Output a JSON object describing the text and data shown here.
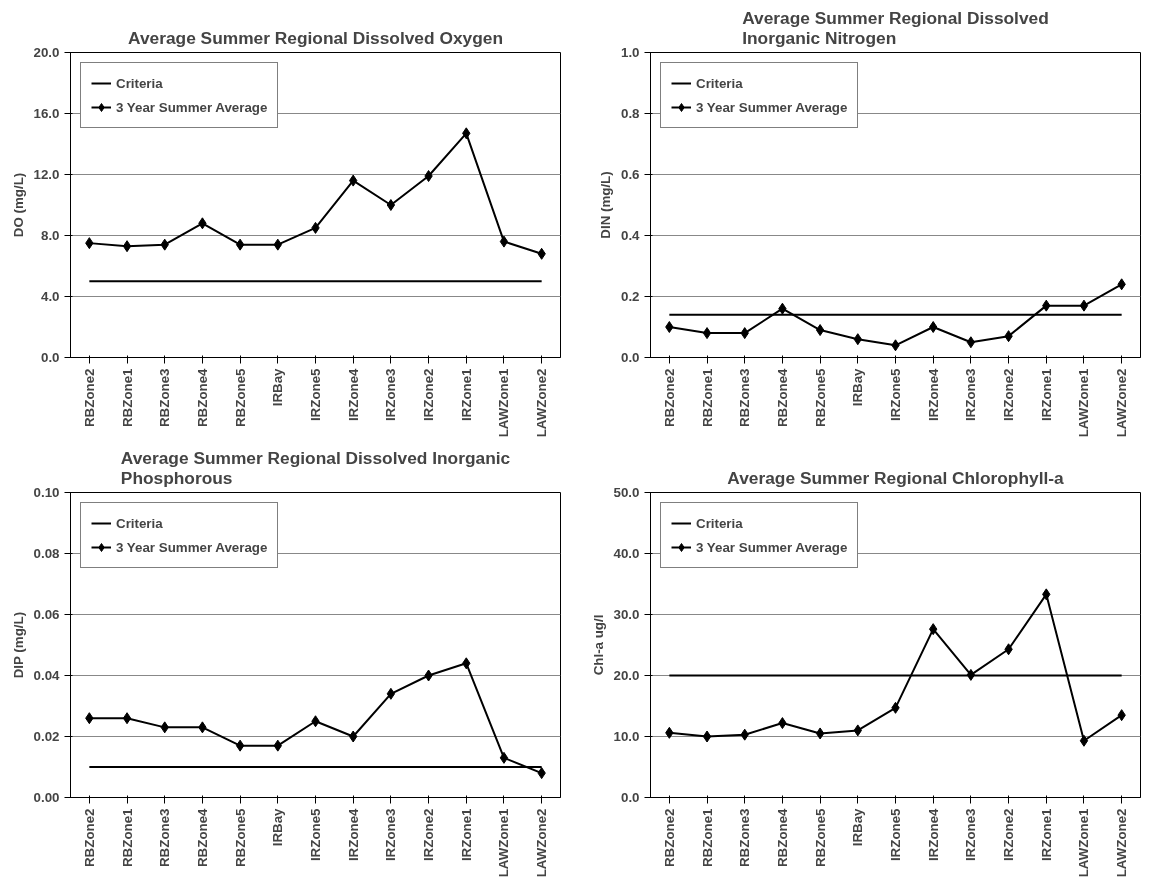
{
  "chart_data": [
    {
      "type": "line",
      "title": "Average Summer Regional Dissolved Oxygen",
      "ylabel": "DO (mg/L)",
      "categories": [
        "RBZone2",
        "RBZone1",
        "RBZone3",
        "RBZone4",
        "RBZone5",
        "IRBay",
        "IRZone5",
        "IRZone4",
        "IRZone3",
        "IRZone2",
        "IRZone1",
        "LAWZone1",
        "LAWZone2"
      ],
      "series": [
        {
          "name": "Criteria",
          "color": "#000000",
          "marker": "none",
          "values": [
            5.0,
            5.0,
            5.0,
            5.0,
            5.0,
            5.0,
            5.0,
            5.0,
            5.0,
            5.0,
            5.0,
            5.0,
            5.0
          ]
        },
        {
          "name": "3 Year Summer Average",
          "color": "#000000",
          "marker": "diamond",
          "values": [
            7.5,
            7.3,
            7.4,
            8.8,
            7.4,
            7.4,
            8.5,
            11.6,
            10.0,
            11.9,
            14.7,
            7.6,
            6.8
          ]
        }
      ],
      "ylim": [
        0,
        20
      ],
      "yticks": [
        {
          "value": 0,
          "label": "0.0"
        },
        {
          "value": 4,
          "label": "4.0"
        },
        {
          "value": 8,
          "label": "8.0"
        },
        {
          "value": 12,
          "label": "12.0"
        },
        {
          "value": 16,
          "label": "16.0"
        },
        {
          "value": 20,
          "label": "20.0"
        }
      ],
      "grid": "y",
      "legend": "top left"
    },
    {
      "type": "line",
      "title": "Average Summer Regional Dissolved\nInorganic Nitrogen",
      "ylabel": "DIN (mg/L)",
      "categories": [
        "RBZone2",
        "RBZone1",
        "RBZone3",
        "RBZone4",
        "RBZone5",
        "IRBay",
        "IRZone5",
        "IRZone4",
        "IRZone3",
        "IRZone2",
        "IRZone1",
        "LAWZone1",
        "LAWZone2"
      ],
      "series": [
        {
          "name": "Criteria",
          "color": "#000000",
          "marker": "none",
          "values": [
            0.14,
            0.14,
            0.14,
            0.14,
            0.14,
            0.14,
            0.14,
            0.14,
            0.14,
            0.14,
            0.14,
            0.14,
            0.14
          ]
        },
        {
          "name": "3 Year Summer Average",
          "color": "#000000",
          "marker": "diamond",
          "values": [
            0.1,
            0.08,
            0.08,
            0.16,
            0.09,
            0.06,
            0.04,
            0.1,
            0.05,
            0.07,
            0.17,
            0.17,
            0.24
          ]
        }
      ],
      "ylim": [
        0,
        1
      ],
      "yticks": [
        {
          "value": 0,
          "label": "0.0"
        },
        {
          "value": 0.2,
          "label": "0.2"
        },
        {
          "value": 0.4,
          "label": "0.4"
        },
        {
          "value": 0.6,
          "label": "0.6"
        },
        {
          "value": 0.8,
          "label": "0.8"
        },
        {
          "value": 1,
          "label": "1.0"
        }
      ],
      "grid": "y",
      "legend": "top left"
    },
    {
      "type": "line",
      "title": "Average Summer Regional Dissolved Inorganic\nPhosphorous",
      "ylabel": "DIP (mg/L)",
      "categories": [
        "RBZone2",
        "RBZone1",
        "RBZone3",
        "RBZone4",
        "RBZone5",
        "IRBay",
        "IRZone5",
        "IRZone4",
        "IRZone3",
        "IRZone2",
        "IRZone1",
        "LAWZone1",
        "LAWZone2"
      ],
      "series": [
        {
          "name": "Criteria",
          "color": "#000000",
          "marker": "none",
          "values": [
            0.01,
            0.01,
            0.01,
            0.01,
            0.01,
            0.01,
            0.01,
            0.01,
            0.01,
            0.01,
            0.01,
            0.01,
            0.01
          ]
        },
        {
          "name": "3 Year Summer Average",
          "color": "#000000",
          "marker": "diamond",
          "values": [
            0.026,
            0.026,
            0.023,
            0.023,
            0.017,
            0.017,
            0.025,
            0.02,
            0.034,
            0.04,
            0.044,
            0.013,
            0.008
          ]
        }
      ],
      "ylim": [
        0,
        0.1
      ],
      "yticks": [
        {
          "value": 0,
          "label": "0.00"
        },
        {
          "value": 0.02,
          "label": "0.02"
        },
        {
          "value": 0.04,
          "label": "0.04"
        },
        {
          "value": 0.06,
          "label": "0.06"
        },
        {
          "value": 0.08,
          "label": "0.08"
        },
        {
          "value": 0.1,
          "label": "0.10"
        }
      ],
      "grid": "y",
      "legend": "top left"
    },
    {
      "type": "line",
      "title": "Average Summer Regional Chlorophyll-a",
      "ylabel": "Chl-a ug/l",
      "categories": [
        "RBZone2",
        "RBZone1",
        "RBZone3",
        "RBZone4",
        "RBZone5",
        "IRBay",
        "IRZone5",
        "IRZone4",
        "IRZone3",
        "IRZone2",
        "IRZone1",
        "LAWZone1",
        "LAWZone2"
      ],
      "series": [
        {
          "name": "Criteria",
          "color": "#000000",
          "marker": "none",
          "values": [
            20,
            20,
            20,
            20,
            20,
            20,
            20,
            20,
            20,
            20,
            20,
            20,
            20
          ]
        },
        {
          "name": "3 Year Summer Average",
          "color": "#000000",
          "marker": "diamond",
          "values": [
            10.6,
            10.0,
            10.3,
            12.2,
            10.5,
            11.0,
            14.7,
            27.6,
            20.1,
            24.3,
            33.3,
            9.3,
            13.5
          ]
        }
      ],
      "ylim": [
        0,
        50
      ],
      "yticks": [
        {
          "value": 0,
          "label": "0.0"
        },
        {
          "value": 10,
          "label": "10.0"
        },
        {
          "value": 20,
          "label": "20.0"
        },
        {
          "value": 30,
          "label": "30.0"
        },
        {
          "value": 40,
          "label": "40.0"
        },
        {
          "value": 50,
          "label": "50.0"
        }
      ],
      "grid": "y",
      "legend": "top left"
    }
  ]
}
